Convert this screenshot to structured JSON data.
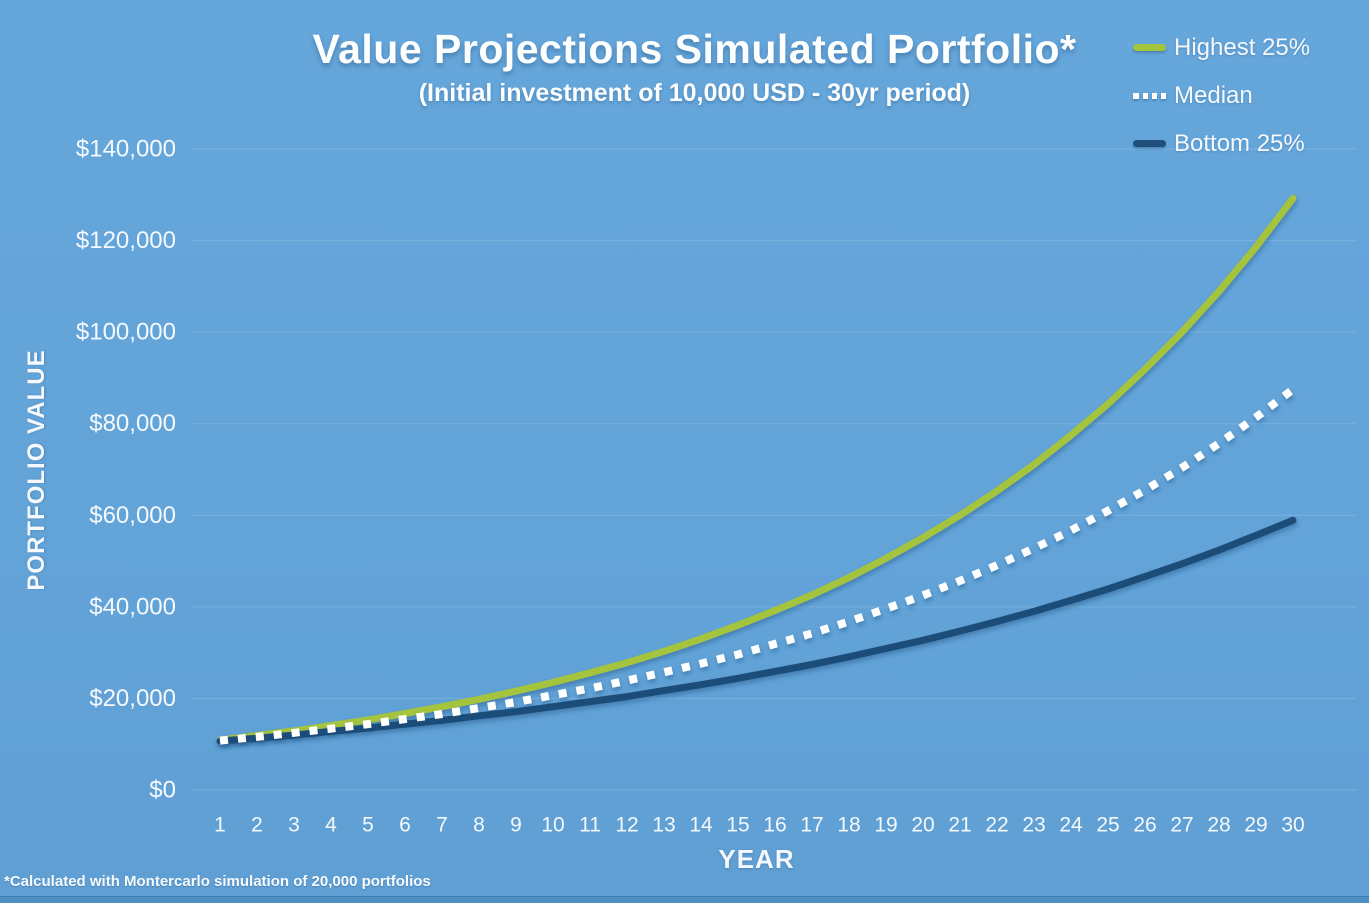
{
  "colors": {
    "background": "#63a4d9",
    "grid": "rgba(255,255,255,0.16)",
    "text": "#f5f9fd",
    "bottom_strip": "#4d8ec5"
  },
  "chart_data": {
    "type": "line",
    "title": "Value Projections Simulated Portfolio*",
    "subtitle": "(Initial investment of 10,000 USD - 30yr period)",
    "xlabel": "YEAR",
    "ylabel": "PORTFOLIO VALUE",
    "footnote": "*Calculated with Montercarlo simulation of 20,000 portfolios",
    "legend_position": "top-right",
    "grid": "horizontal-faint",
    "xlim": [
      1,
      30
    ],
    "ylim": [
      0,
      140000
    ],
    "x": [
      1,
      2,
      3,
      4,
      5,
      6,
      7,
      8,
      9,
      10,
      11,
      12,
      13,
      14,
      15,
      16,
      17,
      18,
      19,
      20,
      21,
      22,
      23,
      24,
      25,
      26,
      27,
      28,
      29,
      30
    ],
    "y_ticks": [
      {
        "value": 0,
        "label": "$0"
      },
      {
        "value": 20000,
        "label": "$20,000"
      },
      {
        "value": 40000,
        "label": "$40,000"
      },
      {
        "value": 60000,
        "label": "$60,000"
      },
      {
        "value": 80000,
        "label": "$80,000"
      },
      {
        "value": 100000,
        "label": "$100,000"
      },
      {
        "value": 120000,
        "label": "$120,000"
      },
      {
        "value": 140000,
        "label": "$140,000"
      }
    ],
    "series": [
      {
        "name": "Highest 25%",
        "color": "#a4c43c",
        "style": "solid",
        "values": [
          10900,
          11900,
          12900,
          14100,
          15300,
          16700,
          18200,
          19800,
          21600,
          23500,
          25600,
          27800,
          30300,
          33000,
          36000,
          39200,
          42600,
          46400,
          50600,
          55100,
          60000,
          65300,
          71100,
          77500,
          84300,
          91900,
          100000,
          108900,
          118600,
          129200
        ]
      },
      {
        "name": "Median",
        "color": "#ffffff",
        "style": "dotted",
        "values": [
          10800,
          11600,
          12500,
          13400,
          14400,
          15500,
          16600,
          17900,
          19200,
          20700,
          22200,
          23900,
          25700,
          27600,
          29600,
          31900,
          34200,
          36800,
          39600,
          42500,
          45700,
          49100,
          52800,
          56700,
          61000,
          65500,
          70400,
          75700,
          81400,
          87500
        ]
      },
      {
        "name": "Bottom 25%",
        "color": "#1f4e79",
        "style": "solid",
        "values": [
          10700,
          11300,
          12000,
          12800,
          13500,
          14400,
          15200,
          16200,
          17100,
          18200,
          19300,
          20400,
          21700,
          23000,
          24400,
          25900,
          27400,
          29100,
          30900,
          32700,
          34700,
          36800,
          39000,
          41400,
          43900,
          46600,
          49400,
          52400,
          55600,
          58900
        ]
      }
    ]
  }
}
